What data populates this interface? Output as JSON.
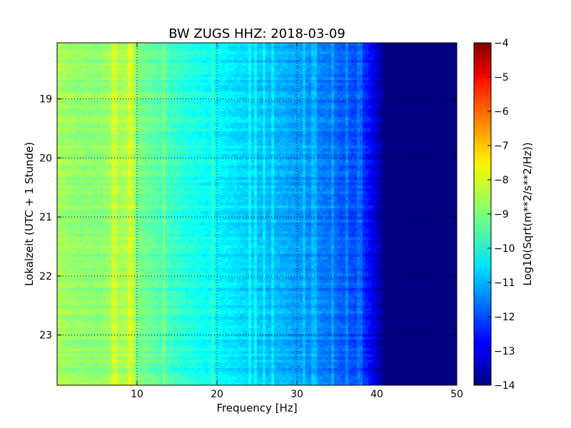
{
  "chart_data": {
    "type": "heatmap",
    "title": "BW ZUGS HHZ: 2018-03-09",
    "xlabel": "Frequency [Hz]",
    "ylabel": "Lokalzeit (UTC + 1 Stunde)",
    "xlim": [
      0,
      50
    ],
    "ylim": [
      18.05,
      23.85
    ],
    "y_inverted": true,
    "x_ticks": [
      10,
      20,
      30,
      40,
      50
    ],
    "x_tick_labels": [
      "10",
      "20",
      "30",
      "40",
      "50"
    ],
    "y_ticks": [
      19,
      20,
      21,
      22,
      23
    ],
    "y_tick_labels": [
      "19",
      "20",
      "21",
      "22",
      "23"
    ],
    "grid": true,
    "colormap": "jet",
    "colorbar": {
      "label": "Log10(Sqrt(m**2/s**2/Hz))",
      "min": -14,
      "max": -4,
      "ticks": [
        -4,
        -5,
        -6,
        -7,
        -8,
        -9,
        -10,
        -11,
        -12,
        -13,
        -14
      ],
      "tick_labels": [
        "−4",
        "−5",
        "−6",
        "−7",
        "−8",
        "−9",
        "−10",
        "−11",
        "−12",
        "−13",
        "−14"
      ]
    },
    "spectrum_profile": {
      "frequency_hz": [
        0,
        2,
        5,
        8,
        9,
        10,
        12,
        14,
        16,
        18,
        20,
        22,
        24,
        26,
        28,
        30,
        32,
        34,
        36,
        37,
        38,
        39,
        40,
        41,
        45,
        50
      ],
      "log_psd": [
        -8.6,
        -8.8,
        -8.9,
        -8.6,
        -8.5,
        -9.0,
        -9.3,
        -9.6,
        -9.9,
        -10.1,
        -10.3,
        -10.5,
        -10.7,
        -10.9,
        -11.0,
        -11.2,
        -11.4,
        -11.6,
        -11.9,
        -12.0,
        -12.2,
        -12.6,
        -13.2,
        -14.0,
        -14.0,
        -14.0
      ]
    },
    "band_lines_hz": [
      7.2,
      9.3,
      13.5,
      19.5,
      24.2,
      24.9,
      25.8,
      27.0,
      30.8,
      32.2,
      34.4,
      36.3,
      37.8
    ]
  }
}
